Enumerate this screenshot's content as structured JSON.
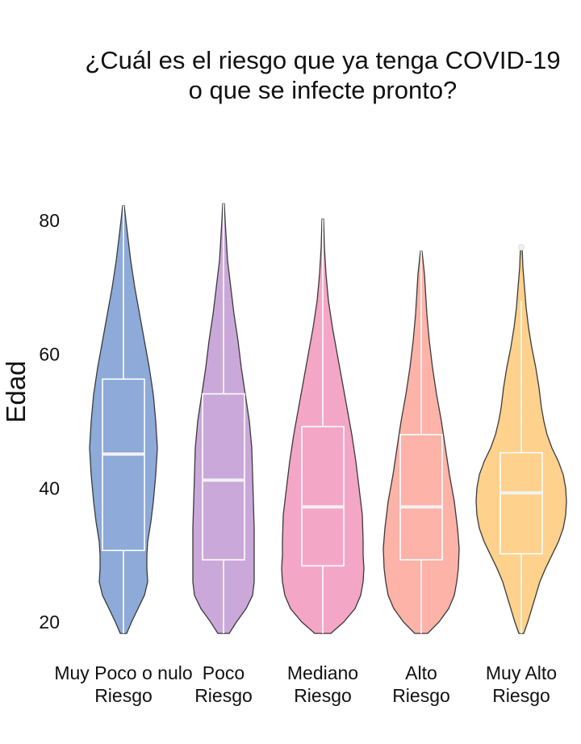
{
  "chart_data": {
    "type": "violin",
    "title": [
      "¿Cuál es el riesgo que ya tenga COVID-19",
      "o que se infecte pronto?"
    ],
    "xlabel": "",
    "ylabel": "Edad",
    "ylim": [
      18,
      89
    ],
    "yticks": [
      20,
      40,
      60,
      80
    ],
    "grid": false,
    "categories": [
      [
        "Muy Poco o nulo",
        "Riesgo"
      ],
      [
        "Poco",
        "Riesgo"
      ],
      [
        "Mediano",
        "Riesgo"
      ],
      [
        "Alto",
        "Riesgo"
      ],
      [
        "Muy Alto",
        "Riesgo"
      ]
    ],
    "series": [
      {
        "color": "#8DAAD8",
        "box": {
          "q1": 30.7,
          "median": 45.1,
          "q3": 56.3,
          "min": 18.3,
          "max": 82.2
        },
        "outliers": [],
        "density": [
          [
            18.3,
            4
          ],
          [
            20,
            10
          ],
          [
            22,
            18
          ],
          [
            24,
            26
          ],
          [
            26,
            30
          ],
          [
            28,
            29
          ],
          [
            30,
            29
          ],
          [
            32,
            30
          ],
          [
            35,
            34
          ],
          [
            38,
            37
          ],
          [
            42,
            40
          ],
          [
            46,
            42
          ],
          [
            50,
            40
          ],
          [
            54,
            37
          ],
          [
            58,
            32
          ],
          [
            62,
            26
          ],
          [
            66,
            20
          ],
          [
            70,
            14
          ],
          [
            74,
            9
          ],
          [
            77,
            6
          ],
          [
            80,
            3
          ],
          [
            82.2,
            1
          ]
        ]
      },
      {
        "color": "#CBA8DA",
        "box": {
          "q1": 29.3,
          "median": 41.2,
          "q3": 54.1,
          "min": 18.3,
          "max": 82.5
        },
        "outliers": [],
        "density": [
          [
            18.3,
            7
          ],
          [
            20,
            16
          ],
          [
            22,
            28
          ],
          [
            24,
            36
          ],
          [
            26,
            38
          ],
          [
            28,
            38
          ],
          [
            30,
            38
          ],
          [
            34,
            38
          ],
          [
            38,
            37
          ],
          [
            42,
            36
          ],
          [
            46,
            35
          ],
          [
            50,
            32
          ],
          [
            54,
            27
          ],
          [
            58,
            22
          ],
          [
            62,
            18
          ],
          [
            66,
            13
          ],
          [
            70,
            9
          ],
          [
            74,
            5
          ],
          [
            78,
            3
          ],
          [
            80,
            2
          ],
          [
            82.5,
            1
          ]
        ]
      },
      {
        "color": "#F4A6C6",
        "box": {
          "q1": 28.4,
          "median": 37.2,
          "q3": 49.2,
          "min": 18.3,
          "max": 80.2
        },
        "outliers": [],
        "density": [
          [
            18.3,
            10
          ],
          [
            20,
            26
          ],
          [
            22,
            40
          ],
          [
            24,
            47
          ],
          [
            26,
            50
          ],
          [
            28,
            51
          ],
          [
            30,
            50
          ],
          [
            32,
            50
          ],
          [
            36,
            49
          ],
          [
            40,
            45
          ],
          [
            44,
            41
          ],
          [
            48,
            36
          ],
          [
            52,
            30
          ],
          [
            56,
            24
          ],
          [
            60,
            18
          ],
          [
            64,
            12
          ],
          [
            68,
            7
          ],
          [
            72,
            4
          ],
          [
            76,
            2
          ],
          [
            80.2,
            1
          ]
        ]
      },
      {
        "color": "#FDB3A8",
        "box": {
          "q1": 29.3,
          "median": 37.2,
          "q3": 48.0,
          "min": 18.3,
          "max": 75.4
        },
        "outliers": [],
        "density": [
          [
            18.3,
            8
          ],
          [
            20,
            22
          ],
          [
            22,
            34
          ],
          [
            24,
            41
          ],
          [
            26,
            44
          ],
          [
            28,
            46
          ],
          [
            31,
            47
          ],
          [
            34,
            45
          ],
          [
            38,
            41
          ],
          [
            42,
            35
          ],
          [
            46,
            30
          ],
          [
            50,
            25
          ],
          [
            54,
            19
          ],
          [
            58,
            14
          ],
          [
            62,
            10
          ],
          [
            66,
            7
          ],
          [
            70,
            5
          ],
          [
            72,
            4
          ],
          [
            75.4,
            1
          ]
        ]
      },
      {
        "color": "#FED18C",
        "box": {
          "q1": 30.2,
          "median": 39.3,
          "q3": 45.3,
          "min": 18.3,
          "max": 68.0
        },
        "outliers": [
          76.0
        ],
        "density": [
          [
            18.3,
            3
          ],
          [
            20,
            8
          ],
          [
            22,
            13
          ],
          [
            24,
            18
          ],
          [
            26,
            23
          ],
          [
            28,
            30
          ],
          [
            30,
            38
          ],
          [
            32,
            46
          ],
          [
            34,
            52
          ],
          [
            36,
            55
          ],
          [
            38,
            56
          ],
          [
            40,
            55
          ],
          [
            42,
            52
          ],
          [
            44,
            46
          ],
          [
            46,
            38
          ],
          [
            48,
            32
          ],
          [
            50,
            28
          ],
          [
            52,
            25
          ],
          [
            55,
            22
          ],
          [
            58,
            18
          ],
          [
            61,
            13
          ],
          [
            64,
            9
          ],
          [
            67,
            6
          ],
          [
            70,
            4
          ],
          [
            73,
            2
          ],
          [
            76,
            1
          ]
        ]
      }
    ]
  }
}
